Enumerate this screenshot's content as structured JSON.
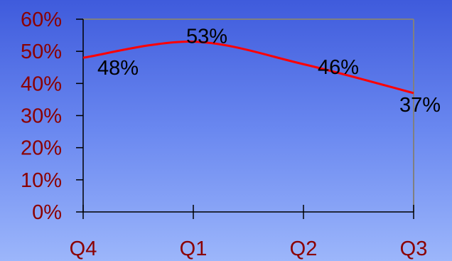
{
  "chart_data": {
    "type": "line",
    "categories": [
      "Q4",
      "Q1",
      "Q2",
      "Q3"
    ],
    "series": [
      {
        "values": [
          48,
          53,
          46,
          37
        ],
        "labels": [
          "48%",
          "53%",
          "46%",
          "37%"
        ],
        "color": "#ff0000",
        "smooth": true
      }
    ],
    "y_ticks": [
      "0%",
      "10%",
      "20%",
      "30%",
      "40%",
      "50%",
      "60%"
    ],
    "ylim": [
      0,
      60
    ],
    "grid": false,
    "colors": {
      "tick_label": "#8b0000",
      "data_label": "#000000",
      "axis": "#000000",
      "plot_frame": "#808080"
    }
  }
}
